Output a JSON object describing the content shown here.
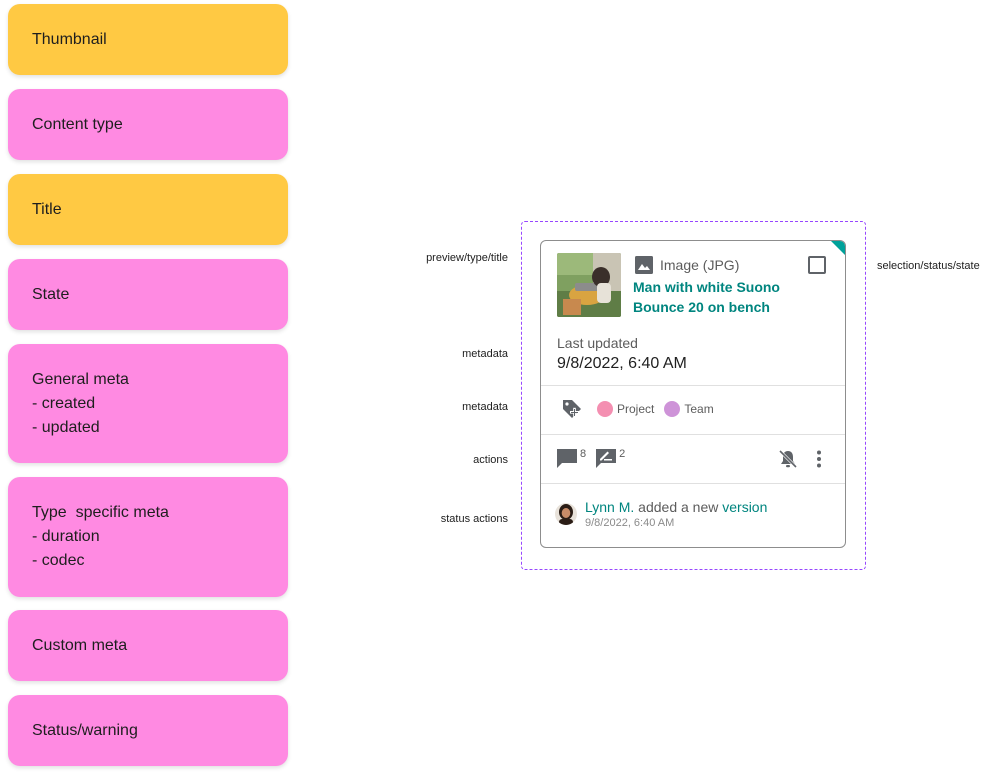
{
  "notes": [
    {
      "lines": [
        "Thumbnail"
      ],
      "color": "#ffc943"
    },
    {
      "lines": [
        "Content type"
      ],
      "color": "#ff8ae2"
    },
    {
      "lines": [
        "Title"
      ],
      "color": "#ffc943"
    },
    {
      "lines": [
        "State"
      ],
      "color": "#ff8ae2"
    },
    {
      "lines": [
        "General meta",
        "- created",
        "- updated"
      ],
      "color": "#ff8ae2"
    },
    {
      "lines": [
        "Type  specific meta",
        "- duration",
        "- codec"
      ],
      "color": "#ff8ae2"
    },
    {
      "lines": [
        "Custom meta"
      ],
      "color": "#ff8ae2"
    },
    {
      "lines": [
        "Status/warning"
      ],
      "color": "#ff8ae2"
    }
  ],
  "annotations": {
    "preview_type_title": "preview/type/title",
    "selection_status_state": "selection/status/state",
    "metadata_1": "metadata",
    "metadata_2": "metadata",
    "actions": "actions",
    "status_actions": "status actions"
  },
  "card": {
    "type_icon": "image-icon",
    "type_label": "Image (JPG)",
    "title": "Man with white Suono Bounce 20 on bench",
    "last_updated_label": "Last updated",
    "last_updated_value": "9/8/2022, 6:40 AM",
    "status_color": "#00a19a",
    "tags": [
      {
        "label": "Project",
        "color": "#f48fb1"
      },
      {
        "label": "Team",
        "color": "#ce93d8"
      }
    ],
    "comments_count": "8",
    "annotations_count": "2",
    "status": {
      "user": "Lynn M.",
      "action": " added a new ",
      "object": "version",
      "time": "9/8/2022, 6:40 AM"
    }
  }
}
